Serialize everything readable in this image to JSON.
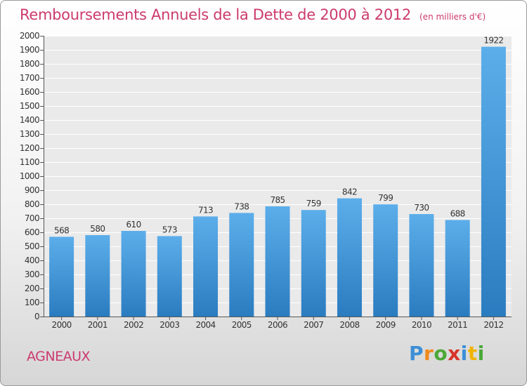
{
  "title": "Remboursements Annuels de la Dette de 2000 à 2012",
  "unit": "(en milliers d'€)",
  "town": "AGNEAUX",
  "logo": {
    "letters": [
      "P",
      "r",
      "o",
      "x",
      "i",
      "t",
      "i"
    ],
    "colors": [
      "#3c8fd6",
      "#f08a1c",
      "#4aa838",
      "#d8322a",
      "#3c8fd6",
      "#f0b400",
      "#4aa838"
    ]
  },
  "colors": {
    "accent": "#cc3a6e",
    "bar_top": "#5caeea",
    "bar_bottom": "#2a7cc0"
  },
  "chart_data": {
    "type": "bar",
    "categories": [
      "2000",
      "2001",
      "2002",
      "2003",
      "2004",
      "2005",
      "2006",
      "2007",
      "2008",
      "2009",
      "2010",
      "2011",
      "2012"
    ],
    "values": [
      568,
      580,
      610,
      573,
      713,
      738,
      785,
      759,
      842,
      799,
      730,
      688,
      1922
    ],
    "title": "Remboursements Annuels de la Dette de 2000 à 2012",
    "xlabel": "",
    "ylabel": "",
    "ylim": [
      0,
      2000
    ],
    "yticks": [
      0,
      100,
      200,
      300,
      400,
      500,
      600,
      700,
      800,
      900,
      1000,
      1100,
      1200,
      1300,
      1400,
      1500,
      1600,
      1700,
      1800,
      1900,
      2000
    ],
    "grid": true
  }
}
